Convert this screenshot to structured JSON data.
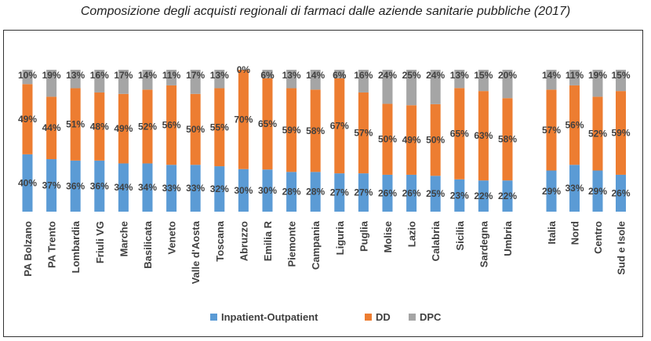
{
  "title": "Composizione degli acquisti regionali di farmaci dalle aziende sanitarie pubbliche (2017)",
  "chart_data": {
    "type": "bar",
    "stacked": "percent",
    "categories": [
      "PA Bolzano",
      "PA Trento",
      "Lombardia",
      "Friuli VG",
      "Marche",
      "Basilicata",
      "Veneto",
      "Valle d'Aosta",
      "Toscana",
      "Abruzzo",
      "Emilia R",
      "Piemonte",
      "Campania",
      "Liguria",
      "Puglia",
      "Molise",
      "Lazio",
      "Calabria",
      "Sicilia",
      "Sardegna",
      "Umbria",
      "Italia",
      "Nord",
      "Centro",
      "Sud e Isole"
    ],
    "series": [
      {
        "name": "Inpatient-Outpatient",
        "color": "#5B9BD5",
        "values": [
          40,
          37,
          36,
          36,
          34,
          34,
          33,
          33,
          32,
          30,
          30,
          28,
          28,
          27,
          27,
          26,
          26,
          25,
          23,
          22,
          22,
          29,
          33,
          29,
          26
        ]
      },
      {
        "name": "DD",
        "color": "#ED7D31",
        "values": [
          49,
          44,
          51,
          48,
          49,
          52,
          56,
          50,
          55,
          70,
          65,
          59,
          58,
          67,
          57,
          50,
          49,
          50,
          65,
          63,
          58,
          57,
          56,
          52,
          59
        ]
      },
      {
        "name": "DPC",
        "color": "#A5A5A5",
        "values": [
          10,
          19,
          13,
          16,
          17,
          14,
          11,
          17,
          13,
          0,
          6,
          13,
          14,
          6,
          16,
          24,
          25,
          24,
          13,
          15,
          20,
          14,
          11,
          19,
          15
        ]
      }
    ],
    "legend_position": "bottom",
    "grid": false,
    "ylim": [
      0,
      100
    ]
  }
}
